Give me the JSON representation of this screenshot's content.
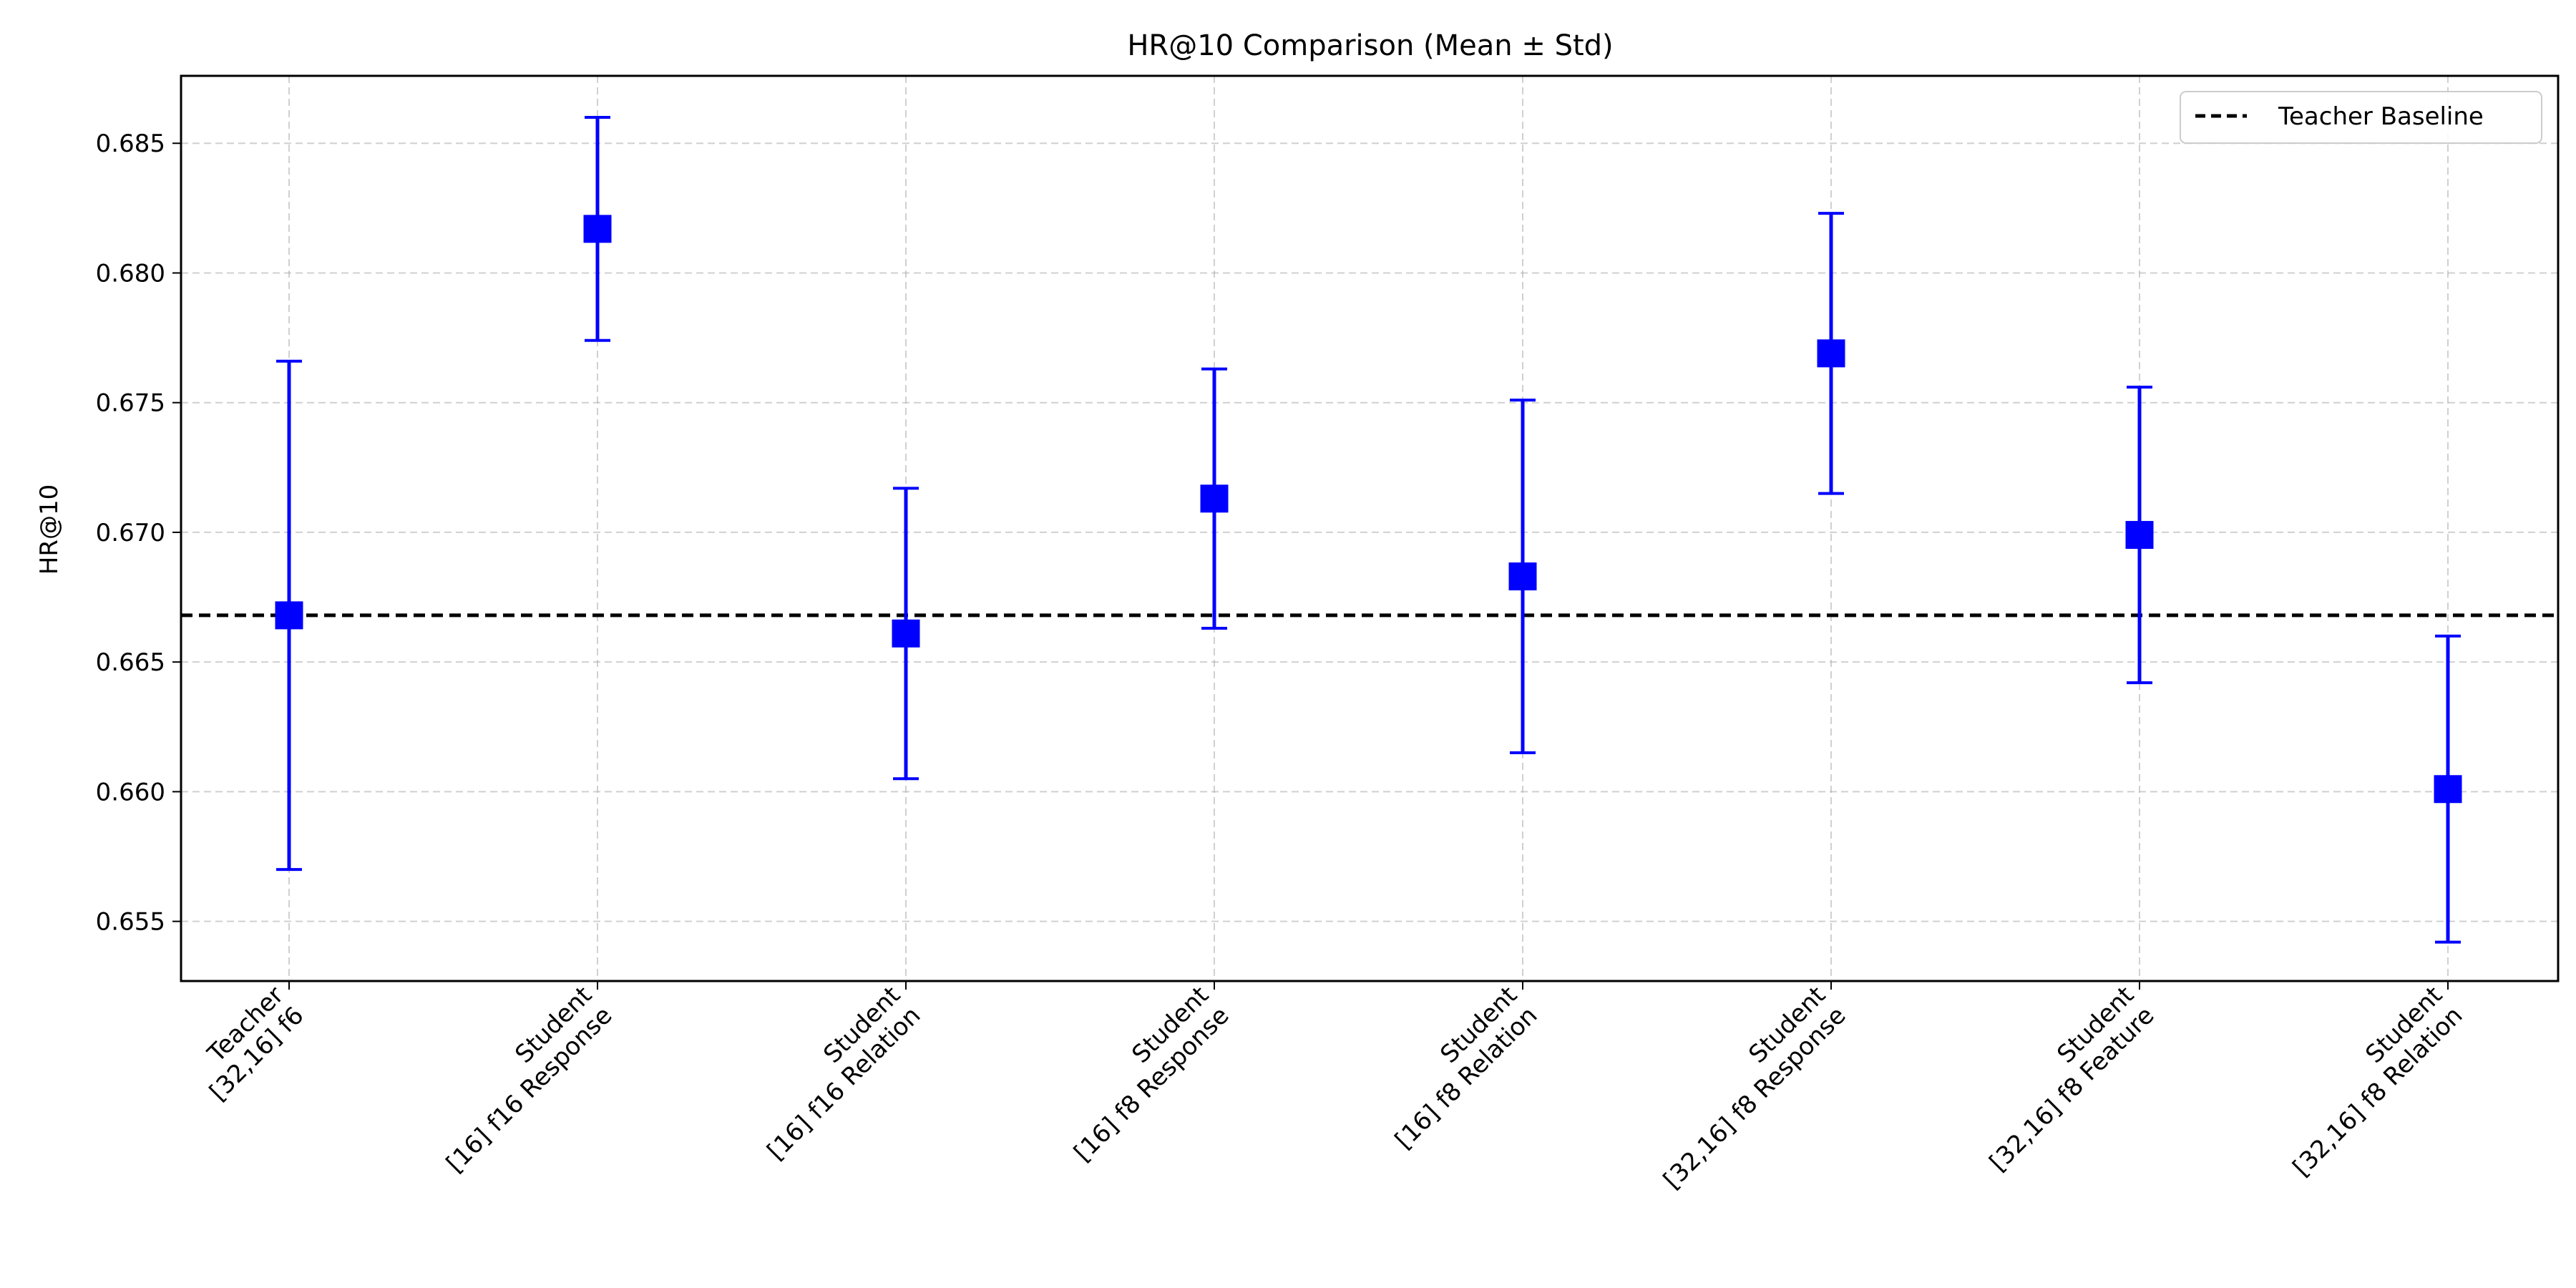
{
  "chart_data": {
    "type": "errorbar",
    "title": "HR@10 Comparison (Mean ± Std)",
    "xlabel": "",
    "ylabel": "HR@10",
    "ylim": [
      0.6527,
      0.6876
    ],
    "yticks": [
      "0.655",
      "0.660",
      "0.665",
      "0.670",
      "0.675",
      "0.680",
      "0.685"
    ],
    "categories": [
      [
        "Teacher",
        "[32,16] f6"
      ],
      [
        "Student",
        "[16] f16 Response"
      ],
      [
        "Student",
        "[16] f16 Relation"
      ],
      [
        "Student",
        "[16] f8 Response"
      ],
      [
        "Student",
        "[16] f8 Relation"
      ],
      [
        "Student",
        "[32,16] f8 Response"
      ],
      [
        "Student",
        "[32,16] f8 Feature"
      ],
      [
        "Student",
        "[32,16] f8 Relation"
      ]
    ],
    "means": [
      0.6668,
      0.6817,
      0.6661,
      0.6713,
      0.6683,
      0.6769,
      0.6699,
      0.6601
    ],
    "stds": [
      0.0098,
      0.0043,
      0.0056,
      0.005,
      0.0068,
      0.0054,
      0.0057,
      0.0059
    ],
    "baseline": {
      "label": "Teacher Baseline",
      "value": 0.6668,
      "style": "dashed",
      "color": "#000000"
    },
    "series_color": "#0000ff",
    "marker": "square",
    "grid": true,
    "legend_position": "top-right"
  }
}
